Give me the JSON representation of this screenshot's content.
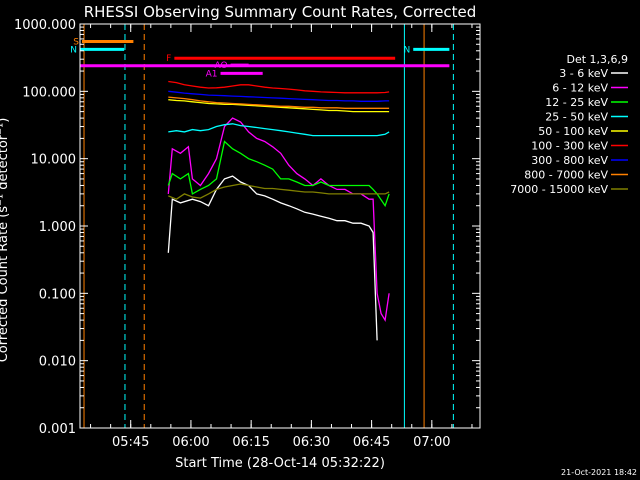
{
  "chart_data": {
    "type": "line",
    "title": "RHESSI Observing Summary Count Rates, Corrected",
    "xlabel": "Start Time (28-Oct-14 05:32:22)",
    "ylabel": "Corrected Count Rate (s⁻¹ detector⁻¹)",
    "yscale": "log",
    "ylim": [
      0.001,
      1000
    ],
    "xlim": [
      "05:32:22",
      "07:12:00"
    ],
    "x_unit": "minutes after 05:32:22",
    "y_tick_labels": [
      "1000.000",
      "100.000",
      "10.000",
      "1.000",
      "0.100",
      "0.010",
      "0.001"
    ],
    "y_tick_values": [
      1000,
      100,
      10,
      1,
      0.1,
      0.01,
      0.001
    ],
    "x_tick_labels": [
      "05:45",
      "06:00",
      "06:15",
      "06:30",
      "06:45",
      "07:00"
    ],
    "x_tick_values": [
      12.63,
      27.63,
      42.63,
      57.63,
      72.63,
      87.63
    ],
    "grid": false,
    "legend_title": "Det 1,3,6,9",
    "legend_position": "right",
    "series": [
      {
        "name": "3 - 6 keV",
        "color": "#ffffff",
        "x": [
          22,
          23,
          25,
          28,
          30,
          32,
          34,
          36,
          38,
          40,
          42,
          44,
          46,
          48,
          50,
          52,
          54,
          56,
          58,
          60,
          62,
          64,
          66,
          68,
          70,
          72,
          73,
          74
        ],
        "y": [
          0.4,
          2.5,
          2.2,
          2.5,
          2.3,
          2.0,
          3.5,
          5.0,
          5.5,
          4.5,
          4.0,
          3.0,
          2.8,
          2.5,
          2.2,
          2.0,
          1.8,
          1.6,
          1.5,
          1.4,
          1.3,
          1.2,
          1.2,
          1.1,
          1.1,
          1.0,
          0.8,
          0.02
        ]
      },
      {
        "name": "6 - 12 keV",
        "color": "#ff00ff",
        "x": [
          22,
          23,
          25,
          27,
          28,
          30,
          32,
          34,
          36,
          38,
          40,
          42,
          44,
          46,
          48,
          50,
          52,
          54,
          56,
          58,
          60,
          62,
          64,
          66,
          68,
          70,
          72,
          73,
          74,
          75,
          76,
          77
        ],
        "y": [
          3,
          14,
          12,
          15,
          5,
          4,
          6,
          10,
          30,
          40,
          35,
          25,
          20,
          18,
          15,
          12,
          8,
          6,
          5,
          4,
          5,
          4,
          3.5,
          3.5,
          3,
          3,
          2.5,
          2.5,
          0.1,
          0.05,
          0.04,
          0.1
        ]
      },
      {
        "name": "12 - 25 keV",
        "color": "#00ff00",
        "x": [
          22,
          23,
          25,
          27,
          28,
          30,
          32,
          34,
          36,
          38,
          40,
          42,
          44,
          46,
          48,
          50,
          52,
          54,
          56,
          58,
          60,
          62,
          64,
          66,
          68,
          70,
          72,
          73,
          74,
          76,
          77
        ],
        "y": [
          4,
          6,
          5,
          6,
          3,
          3.5,
          4,
          5,
          18,
          14,
          12,
          10,
          9,
          8,
          7,
          5,
          5,
          4.5,
          4,
          4,
          4.5,
          4,
          4,
          4,
          4,
          4,
          4,
          3.5,
          3,
          2,
          3
        ]
      },
      {
        "name": "25 - 50 keV",
        "color": "#00ffff",
        "x": [
          22,
          24,
          26,
          28,
          30,
          32,
          34,
          36,
          38,
          40,
          42,
          44,
          46,
          48,
          50,
          52,
          54,
          56,
          58,
          60,
          62,
          64,
          66,
          68,
          70,
          72,
          74,
          76,
          77
        ],
        "y": [
          25,
          26,
          25,
          27,
          26,
          27,
          30,
          32,
          33,
          31,
          30,
          29,
          28,
          27,
          26,
          25,
          24,
          23,
          22,
          22,
          22,
          22,
          22,
          22,
          22,
          22,
          22,
          23,
          25
        ]
      },
      {
        "name": "50 - 100 keV",
        "color": "#ffff00",
        "x": [
          22,
          24,
          26,
          28,
          30,
          32,
          34,
          36,
          38,
          40,
          42,
          44,
          46,
          48,
          50,
          52,
          54,
          56,
          58,
          60,
          62,
          64,
          66,
          68,
          70,
          72,
          74,
          76,
          77
        ],
        "y": [
          75,
          73,
          72,
          70,
          68,
          66,
          65,
          64,
          64,
          63,
          62,
          61,
          60,
          59,
          58,
          57,
          56,
          55,
          54,
          53,
          52,
          52,
          51,
          50,
          50,
          50,
          50,
          50,
          50
        ]
      },
      {
        "name": "100 - 300 keV",
        "color": "#ff0000",
        "x": [
          22,
          24,
          26,
          28,
          30,
          32,
          34,
          36,
          38,
          40,
          42,
          44,
          46,
          48,
          50,
          52,
          54,
          56,
          58,
          60,
          62,
          64,
          66,
          68,
          70,
          72,
          74,
          76,
          77
        ],
        "y": [
          140,
          135,
          125,
          120,
          115,
          112,
          113,
          115,
          120,
          125,
          125,
          120,
          115,
          112,
          110,
          108,
          105,
          102,
          100,
          98,
          97,
          96,
          95,
          95,
          95,
          95,
          95,
          96,
          98
        ]
      },
      {
        "name": "300 - 800 keV",
        "color": "#0000ff",
        "x": [
          22,
          24,
          26,
          28,
          30,
          32,
          34,
          36,
          38,
          40,
          42,
          44,
          46,
          48,
          50,
          52,
          54,
          56,
          58,
          60,
          62,
          64,
          66,
          68,
          70,
          72,
          74,
          76,
          77
        ],
        "y": [
          100,
          97,
          94,
          92,
          90,
          88,
          87,
          86,
          85,
          84,
          83,
          82,
          81,
          80,
          79,
          78,
          77,
          76,
          75,
          74,
          73,
          73,
          72,
          72,
          71,
          71,
          71,
          72,
          72
        ]
      },
      {
        "name": "800 - 7000 keV",
        "color": "#ff8000",
        "x": [
          22,
          24,
          26,
          28,
          30,
          32,
          34,
          36,
          38,
          40,
          42,
          44,
          46,
          48,
          50,
          52,
          54,
          56,
          58,
          60,
          62,
          64,
          66,
          68,
          70,
          72,
          74,
          76,
          77
        ],
        "y": [
          82,
          80,
          78,
          75,
          72,
          70,
          68,
          67,
          66,
          65,
          64,
          63,
          62,
          61,
          60,
          60,
          59,
          58,
          58,
          57,
          57,
          57,
          56,
          56,
          56,
          56,
          56,
          56,
          56
        ]
      },
      {
        "name": "7000 - 15000 keV",
        "color": "#808000",
        "x": [
          22,
          24,
          26,
          28,
          30,
          32,
          34,
          36,
          38,
          40,
          42,
          44,
          46,
          48,
          50,
          52,
          54,
          56,
          58,
          60,
          62,
          64,
          66,
          68,
          70,
          72,
          74,
          76,
          77
        ],
        "y": [
          2.8,
          2.5,
          3.0,
          2.7,
          2.6,
          3.0,
          3.5,
          3.8,
          4.0,
          4.2,
          4.0,
          3.8,
          3.6,
          3.6,
          3.5,
          3.4,
          3.3,
          3.2,
          3.2,
          3.1,
          3.0,
          3.0,
          3.0,
          3.0,
          3.0,
          3.0,
          3.0,
          3.0,
          3.2
        ]
      }
    ],
    "flag_bars": [
      {
        "label": "S",
        "color": "#ff8000",
        "level": 550,
        "x_start": 0.5,
        "x_end": 13.3
      },
      {
        "label": "N",
        "color": "#00ffff",
        "level": 420,
        "x_start": 0,
        "x_end": 11.0
      },
      {
        "label": "N",
        "color": "#00ffff",
        "level": 420,
        "x_start": 83,
        "x_end": 92
      },
      {
        "label": "",
        "color": "#ff00ff",
        "level": 240,
        "x_start": 0,
        "x_end": 92
      },
      {
        "label": "F",
        "color": "#ff0000",
        "level": 310,
        "x_start": 23.5,
        "x_end": 78.5
      },
      {
        "label": "AO",
        "color": "#ff00ff",
        "level": 245,
        "x_start": 37.5,
        "x_end": 42
      },
      {
        "label": "A1",
        "color": "#ff00ff",
        "level": 185,
        "x_start": 35,
        "x_end": 45.5
      }
    ],
    "vlines": [
      {
        "color": "#ff8000",
        "x": 1,
        "style": "solid"
      },
      {
        "color": "#00ffff",
        "x": 11.2,
        "style": "dashed"
      },
      {
        "color": "#ff8000",
        "x": 16,
        "style": "dashed"
      },
      {
        "color": "#00ffff",
        "x": 80.8,
        "style": "solid"
      },
      {
        "color": "#ff8000",
        "x": 85.7,
        "style": "solid"
      },
      {
        "color": "#00ffff",
        "x": 93,
        "style": "dashed"
      }
    ]
  },
  "footer": {
    "timestamp": "21-Oct-2021 18:42"
  }
}
